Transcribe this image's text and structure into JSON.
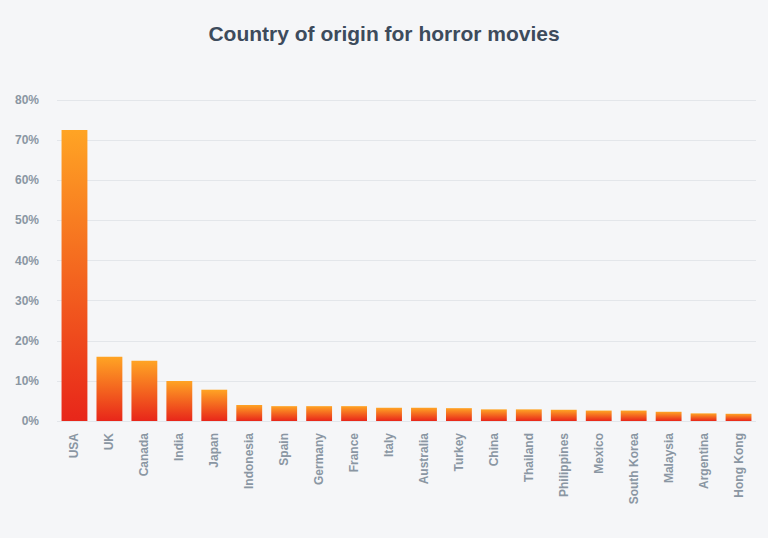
{
  "chart_data": {
    "type": "bar",
    "title": "Country of origin for horror movies",
    "categories": [
      "USA",
      "UK",
      "Canada",
      "India",
      "Japan",
      "Indonesia",
      "Spain",
      "Germany",
      "France",
      "Italy",
      "Australia",
      "Turkey",
      "China",
      "Thailand",
      "Philippines",
      "Mexico",
      "South Korea",
      "Malaysia",
      "Argentina",
      "Hong Kong"
    ],
    "values": [
      72.5,
      16,
      15,
      10,
      7.8,
      4,
      3.7,
      3.7,
      3.7,
      3.3,
      3.3,
      3.2,
      2.9,
      2.9,
      2.8,
      2.6,
      2.6,
      2.3,
      1.9,
      1.8
    ],
    "color": "#ffa424",
    "ylim": [
      0,
      80
    ],
    "yticks": [
      {
        "value": 0,
        "label": "0%"
      },
      {
        "value": 10,
        "label": "10%"
      },
      {
        "value": 20,
        "label": "20%"
      },
      {
        "value": 30,
        "label": "30%"
      },
      {
        "value": 40,
        "label": "40%"
      },
      {
        "value": 50,
        "label": "50%"
      },
      {
        "value": 60,
        "label": "60%"
      },
      {
        "value": 70,
        "label": "70%"
      },
      {
        "value": 80,
        "label": "80%"
      }
    ],
    "grid": true
  }
}
